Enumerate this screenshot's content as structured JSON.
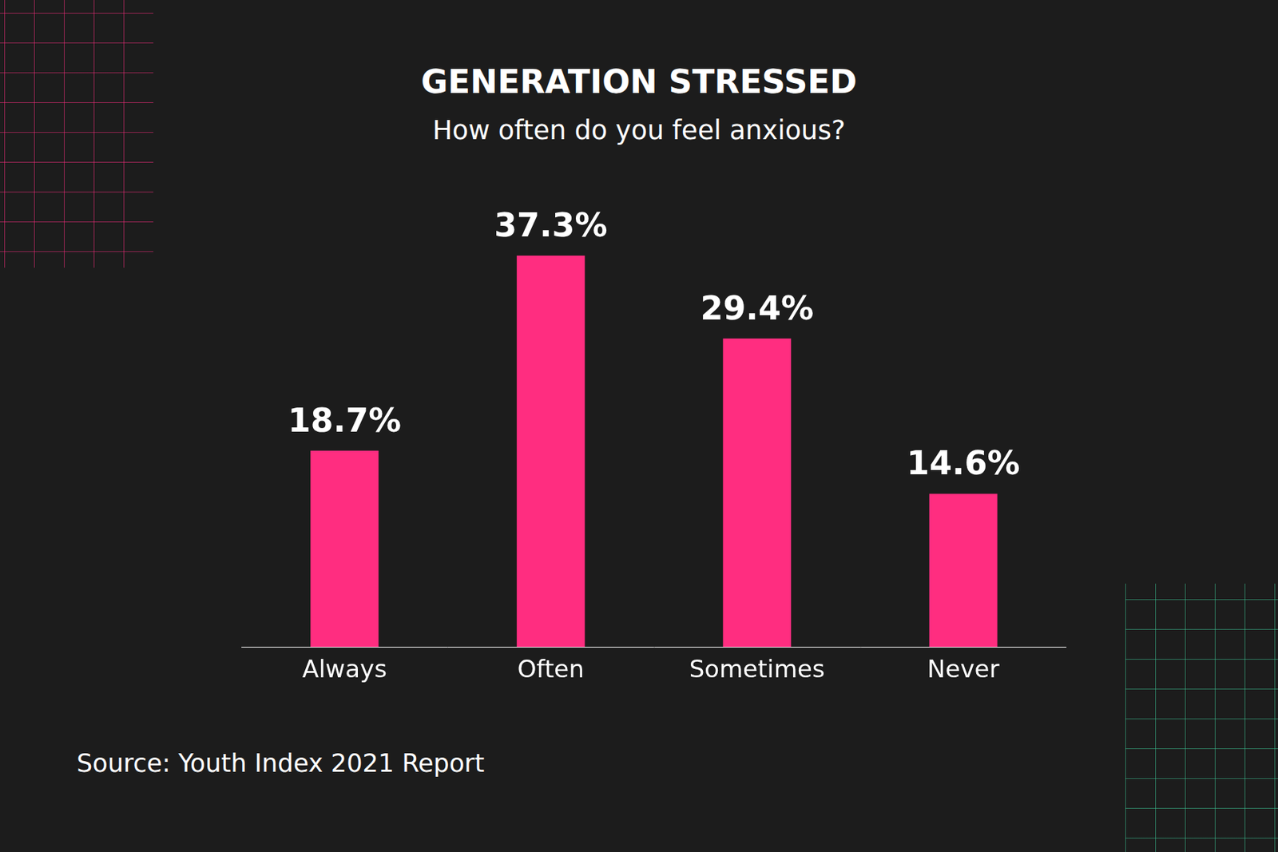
{
  "chart_data": {
    "type": "bar",
    "title": "GENERATION STRESSED",
    "subtitle": "How often do you feel anxious?",
    "categories": [
      "Always",
      "Often",
      "Sometimes",
      "Never"
    ],
    "values": [
      18.7,
      37.3,
      29.4,
      14.6
    ],
    "value_labels": [
      "18.7%",
      "37.3%",
      "29.4%",
      "14.6%"
    ],
    "color": "#ff2d80",
    "data_labels": true,
    "grid": false,
    "tick_labels": "x",
    "source": "Source: Youth Index 2021 Report"
  }
}
